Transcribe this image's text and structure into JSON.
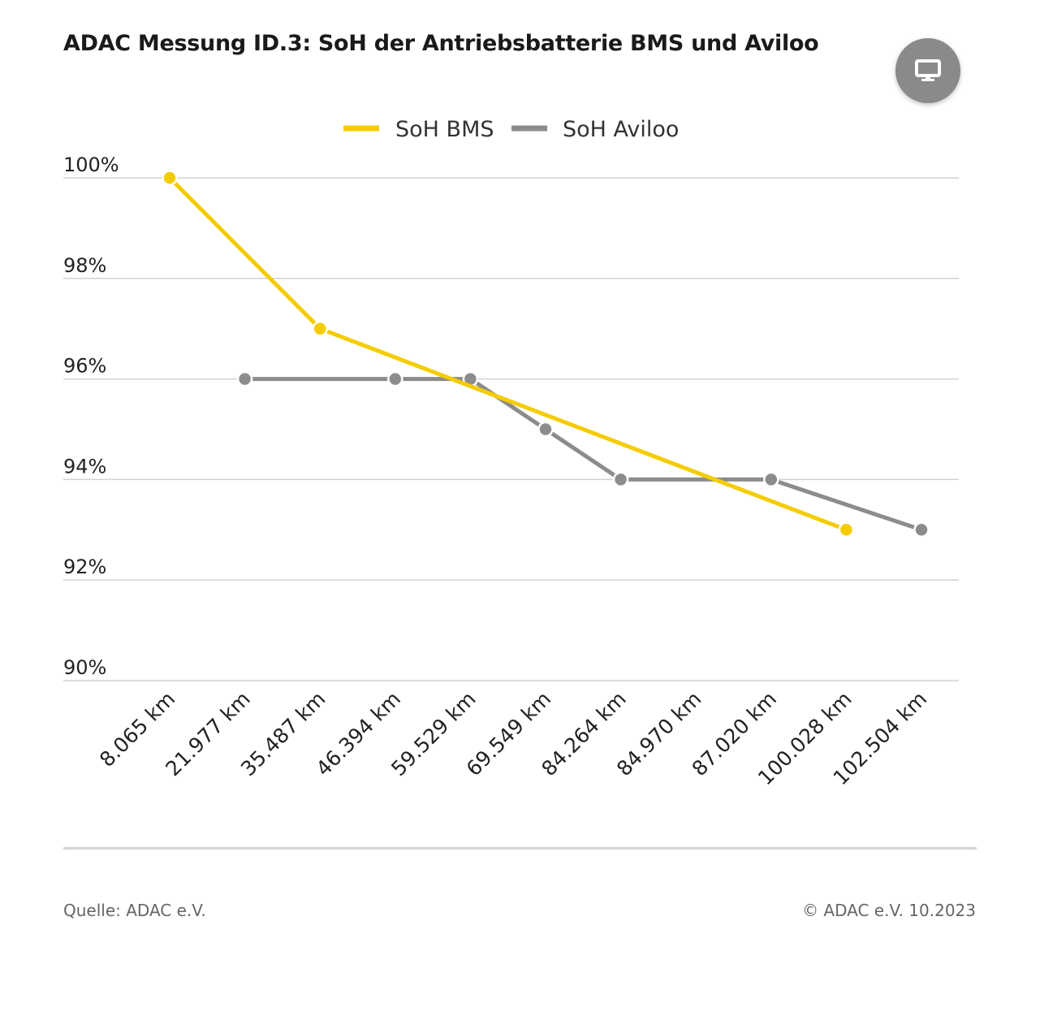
{
  "header": {
    "title": "ADAC Messung ID.3: SoH der Antriebsbatterie BMS und Aviloo",
    "present_icon": "monitor-icon"
  },
  "footer": {
    "source": "Quelle: ADAC e.V.",
    "copyright": "© ADAC e.V. 10.2023"
  },
  "chart_data": {
    "type": "line",
    "title": "ADAC Messung ID.3: SoH der Antriebsbatterie BMS und Aviloo",
    "xlabel": "",
    "ylabel": "",
    "categories": [
      "8.065 km",
      "21.977 km",
      "35.487 km",
      "46.394 km",
      "59.529 km",
      "69.549 km",
      "84.264 km",
      "84.970 km",
      "87.020 km",
      "100.028 km",
      "102.504 km"
    ],
    "ylim": [
      90,
      100
    ],
    "yticks": [
      100,
      98,
      96,
      94,
      92,
      90
    ],
    "ytick_labels": [
      "100%",
      "98%",
      "96%",
      "94%",
      "92%",
      "90%"
    ],
    "grid": true,
    "legend_position": "top-center",
    "series": [
      {
        "name": "SoH BMS",
        "color": "#F5CC00",
        "values": [
          100,
          null,
          97,
          null,
          null,
          null,
          null,
          null,
          null,
          93,
          null
        ]
      },
      {
        "name": "SoH Aviloo",
        "color": "#8C8C8C",
        "values": [
          null,
          96,
          null,
          96,
          96,
          95,
          94,
          null,
          94,
          null,
          93
        ]
      }
    ]
  }
}
